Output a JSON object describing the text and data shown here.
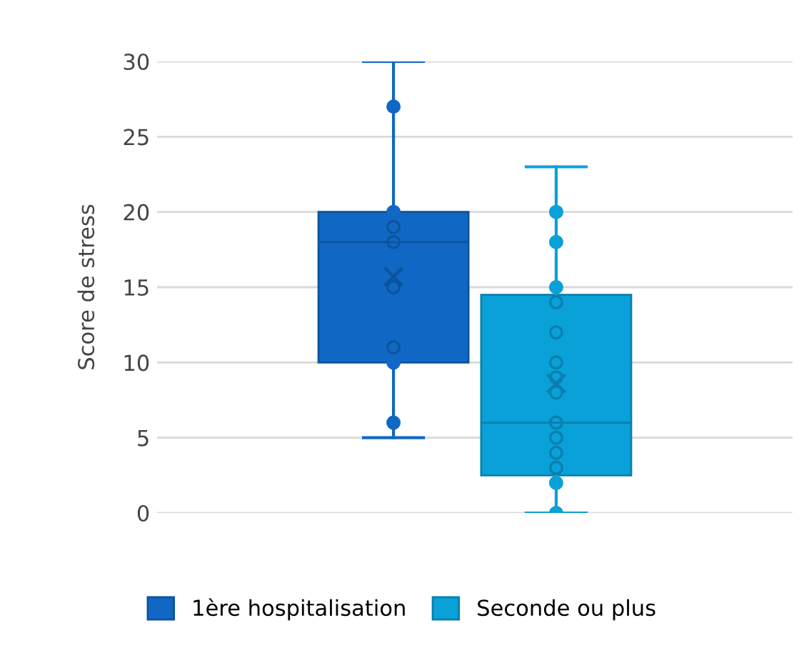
{
  "chart_data": {
    "type": "box",
    "ylabel": "Score de stress",
    "categories": [
      null
    ],
    "ylim": [
      0,
      30
    ],
    "yticks": [
      0,
      5,
      10,
      15,
      20,
      25,
      30
    ],
    "grid": "y",
    "legend": "bottom",
    "series": [
      {
        "name": "1ère hospitalisation",
        "color": "#1068c4",
        "boxes": [
          {
            "low": 5,
            "q1": 10,
            "median": 18,
            "q3": 20,
            "high": 30,
            "mean": 15.7
          }
        ]
      },
      {
        "name": "Seconde ou plus",
        "color": "#0aa0d8",
        "boxes": [
          {
            "low": 0,
            "q1": 2.5,
            "median": 6,
            "q3": 14.5,
            "high": 23,
            "mean": 8.6
          }
        ]
      },
      {
        "type": "scatter",
        "colors": [
          "#1068c4",
          "#1068c4",
          "#0d539d",
          "#0d539d",
          "#0d539d",
          "#0d539d",
          "#1068c4",
          "#1068c4"
        ],
        "marker": "circle",
        "x": [
          null,
          null,
          null,
          null,
          null,
          null,
          null,
          null
        ],
        "values": [
          27,
          20,
          19,
          18,
          15,
          11,
          10,
          6
        ]
      },
      {
        "type": "scatter",
        "colors": [
          "#0aa0d8",
          "#0aa0d8",
          "#0aa0d8",
          "#0880ad",
          "#0880ad",
          "#0880ad",
          "#0880ad",
          "#0880ad",
          "#0880ad",
          "#0880ad",
          "#0880ad",
          "#0880ad",
          "#0aa0d8",
          "#0aa0d8"
        ],
        "marker": "circle",
        "x": [
          null,
          null,
          null,
          null,
          null,
          null,
          null,
          null,
          null,
          null,
          null,
          null,
          null,
          null
        ],
        "values": [
          20,
          18,
          15,
          14,
          12,
          10,
          9,
          8,
          6,
          5,
          4,
          3,
          2,
          0
        ]
      }
    ]
  }
}
